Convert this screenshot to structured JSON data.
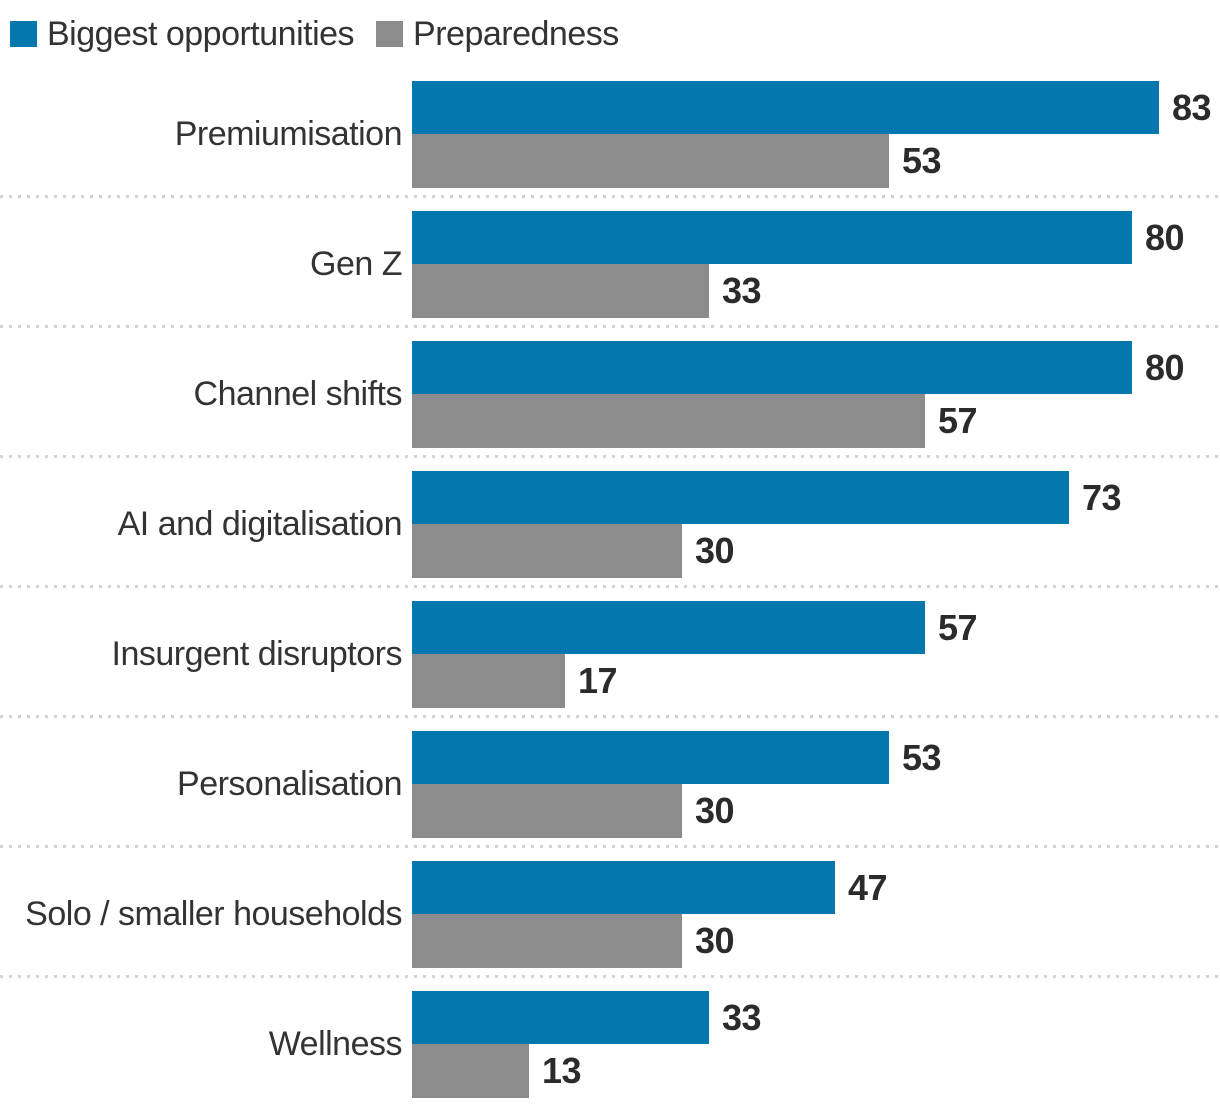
{
  "legend": {
    "items": [
      {
        "label": "Biggest opportunities",
        "color": "#0478AE"
      },
      {
        "label": "Preparedness",
        "color": "#8C8C8C"
      }
    ]
  },
  "chart_data": {
    "type": "bar",
    "orientation": "horizontal",
    "title": "",
    "categories": [
      "Premiumisation",
      "Gen Z",
      "Channel shifts",
      "AI and digitalisation",
      "Insurgent disruptors",
      "Personalisation",
      "Solo / smaller households",
      "Wellness"
    ],
    "series": [
      {
        "name": "Biggest opportunities",
        "color": "#0478AE",
        "values": [
          83,
          80,
          80,
          73,
          57,
          53,
          47,
          33
        ]
      },
      {
        "name": "Preparedness",
        "color": "#8C8C8C",
        "values": [
          53,
          33,
          57,
          30,
          17,
          30,
          30,
          13
        ]
      }
    ],
    "value_labels": "at-bar-end",
    "axes": "hidden",
    "grid": false,
    "legend_position": "top-left",
    "group_separator": "dotted-line",
    "xlim": [
      0,
      100
    ]
  },
  "styles": {
    "background": "#FFFFFF",
    "label_color": "#333333",
    "value_color": "#2B2B2B",
    "separator_color": "#D2D2D2"
  }
}
